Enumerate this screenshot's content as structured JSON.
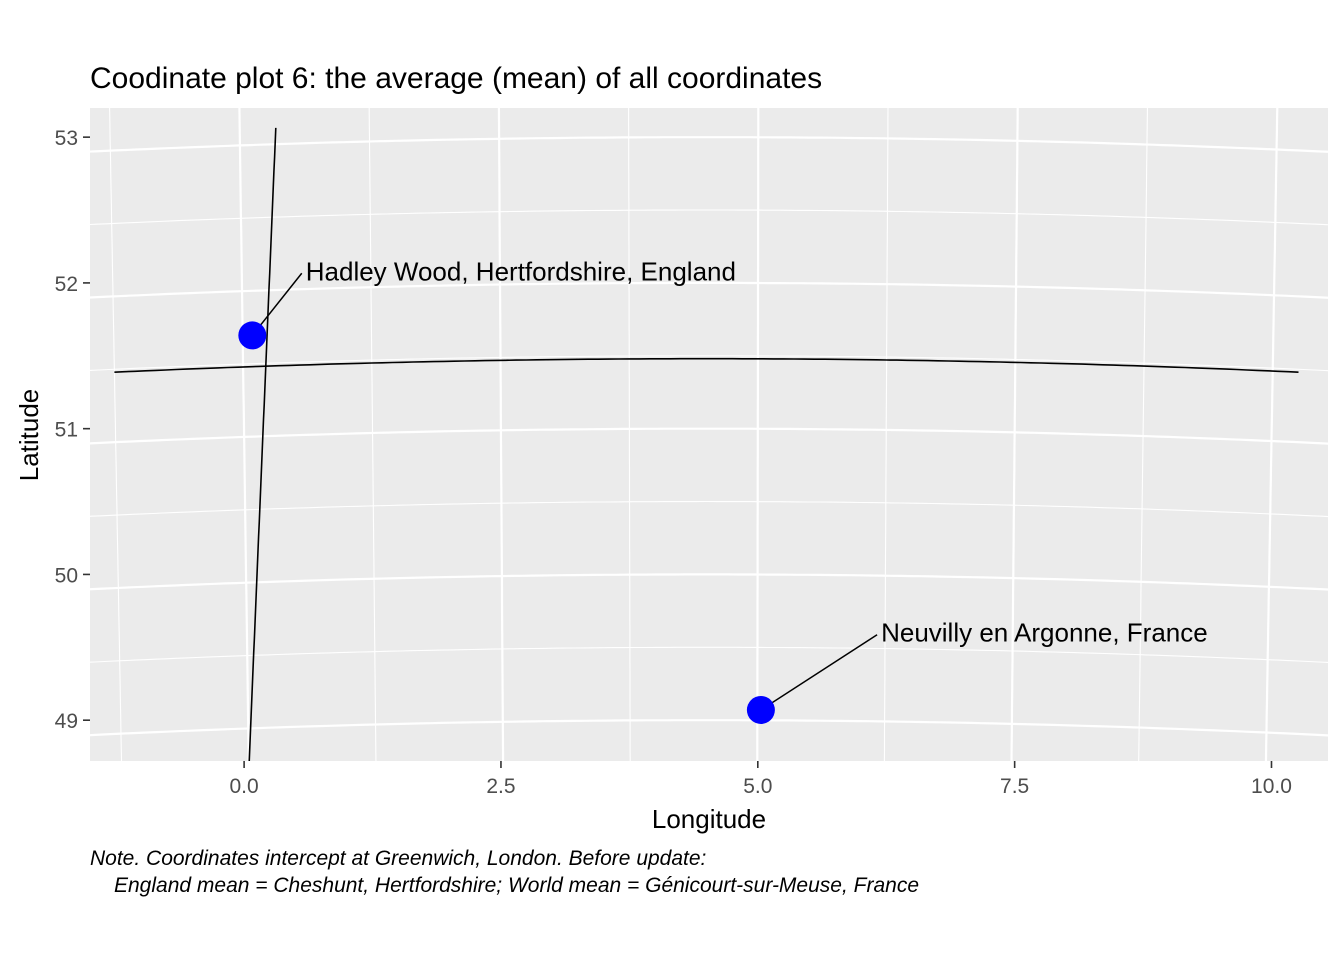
{
  "chart_data": {
    "type": "scatter",
    "title": "Coodinate plot 6: the average (mean) of all coordinates",
    "xlabel": "Longitude",
    "ylabel": "Latitude",
    "xlim": [
      -1.5,
      10.55
    ],
    "ylim": [
      48.72,
      53.2
    ],
    "x_ticks": [
      {
        "value": 0.0,
        "label": "0.0"
      },
      {
        "value": 2.5,
        "label": "2.5"
      },
      {
        "value": 5.0,
        "label": "5.0"
      },
      {
        "value": 7.5,
        "label": "7.5"
      },
      {
        "value": 10.0,
        "label": "10.0"
      }
    ],
    "y_ticks": [
      {
        "value": 49,
        "label": "49"
      },
      {
        "value": 50,
        "label": "50"
      },
      {
        "value": 51,
        "label": "51"
      },
      {
        "value": 52,
        "label": "52"
      },
      {
        "value": 53,
        "label": "53"
      }
    ],
    "grid": true,
    "point_color": "#0000FF",
    "points": [
      {
        "x": 0.08,
        "y": 51.64,
        "label": "Hadley Wood, Hertfordshire, England",
        "label_x": 0.6,
        "label_y": 52.08
      },
      {
        "x": 5.03,
        "y": 49.07,
        "label": "Neuvilly en Argonne, France",
        "label_x": 6.2,
        "label_y": 49.6
      }
    ],
    "reference_lines": [
      {
        "orientation": "vertical",
        "x": 0.0
      },
      {
        "orientation": "horizontal",
        "y": 51.48
      }
    ],
    "caption": [
      "Note. Coordinates intercept at Greenwich, London. Before update:",
      "England mean = Cheshunt, Hertfordshire; World mean =  Génicourt-sur-Meuse, France"
    ]
  }
}
